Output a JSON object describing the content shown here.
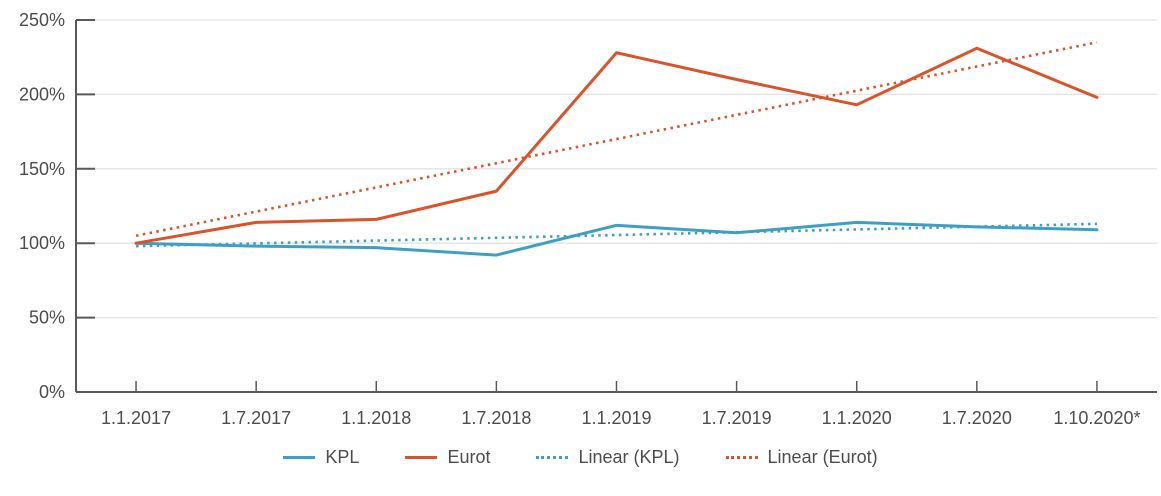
{
  "chart_data": {
    "type": "line",
    "title": "",
    "xlabel": "",
    "ylabel": "",
    "categories": [
      "1.1.2017",
      "1.7.2017",
      "1.1.2018",
      "1.7.2018",
      "1.1.2019",
      "1.7.2019",
      "1.1.2020",
      "1.7.2020",
      "1.10.2020*"
    ],
    "ylim": [
      0,
      250
    ],
    "y_ticks": [
      0,
      50,
      100,
      150,
      200,
      250
    ],
    "y_tick_labels": [
      "0%",
      "50%",
      "100%",
      "150%",
      "200%",
      "250%"
    ],
    "grid": "horizontal",
    "legend_position": "bottom-center",
    "series": [
      {
        "name": "KPL",
        "style": "solid",
        "color": "#3e9fc4",
        "values": [
          100,
          98,
          97,
          92,
          112,
          107,
          114,
          111,
          109
        ]
      },
      {
        "name": "Eurot",
        "style": "solid",
        "color": "#d9542a",
        "values": [
          100,
          114,
          116,
          135,
          228,
          210,
          193,
          231,
          198
        ]
      },
      {
        "name": "Linear (KPL)",
        "style": "dotted",
        "color": "#3e9fc4",
        "trend_of": "KPL",
        "endpoints": [
          98,
          113
        ]
      },
      {
        "name": "Linear (Eurot)",
        "style": "dotted",
        "color": "#d9542a",
        "trend_of": "Eurot",
        "endpoints": [
          105,
          235
        ]
      }
    ],
    "colors": {
      "axis": "#595959",
      "grid": "#e3e3e3",
      "text": "#4d4d4d"
    }
  }
}
